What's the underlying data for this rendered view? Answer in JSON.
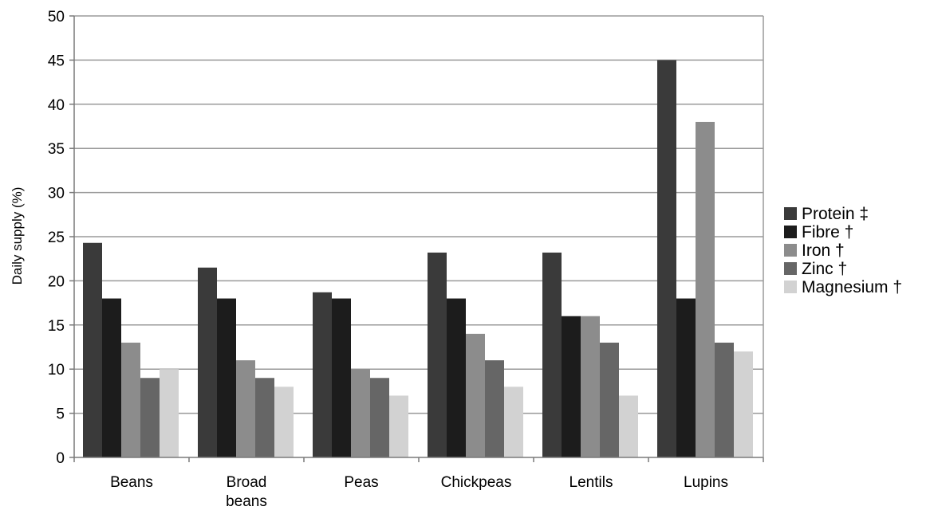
{
  "chart_data": {
    "type": "bar",
    "title": "",
    "xlabel": "",
    "ylabel": "Daily supply (%)",
    "ylim": [
      0,
      50
    ],
    "yticks": [
      0,
      5,
      10,
      15,
      20,
      25,
      30,
      35,
      40,
      45,
      50
    ],
    "grid": true,
    "legend_position": "right",
    "categories": [
      [
        "Beans"
      ],
      [
        "Broad",
        "beans"
      ],
      [
        "Peas"
      ],
      [
        "Chickpeas"
      ],
      [
        "Lentils"
      ],
      [
        "Lupins"
      ]
    ],
    "series": [
      {
        "name": "Protein ‡",
        "color": "#3a3a3a",
        "values": [
          24.3,
          21.5,
          18.7,
          23.2,
          23.2,
          45
        ]
      },
      {
        "name": "Fibre †",
        "color": "#1c1c1c",
        "values": [
          18,
          18,
          18,
          18,
          16,
          18
        ]
      },
      {
        "name": "Iron †",
        "color": "#8c8c8c",
        "values": [
          13,
          11,
          10,
          14,
          16,
          38
        ]
      },
      {
        "name": "Zinc †",
        "color": "#666666",
        "values": [
          9,
          9,
          9,
          11,
          13,
          13
        ]
      },
      {
        "name": "Magnesium †",
        "color": "#d2d2d2",
        "values": [
          10,
          8,
          7,
          8,
          7,
          12
        ]
      }
    ]
  }
}
